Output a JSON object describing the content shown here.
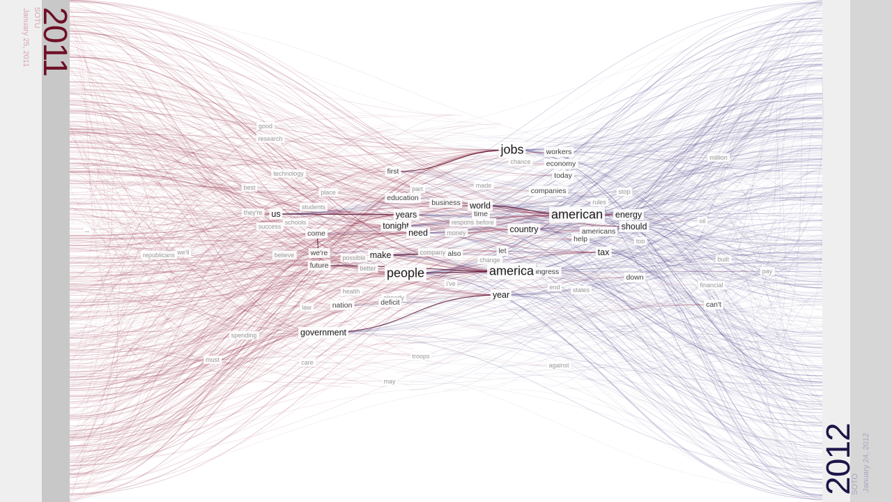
{
  "left": {
    "year": "2011",
    "label": "SOTU",
    "date": "January 25, 2011"
  },
  "right": {
    "year": "2012",
    "label": "SOTO",
    "date": "January 24, 2012"
  },
  "marker": "--",
  "colors": {
    "left": "#8b1a35",
    "right": "#3a2d78",
    "left_text": "#d8a5b0",
    "right_text": "#a9a6c2"
  },
  "words": [
    {
      "text": "jobs",
      "w": 3
    },
    {
      "text": "workers",
      "w": 1
    },
    {
      "text": "chance",
      "w": 0
    },
    {
      "text": "economy",
      "w": 1
    },
    {
      "text": "today",
      "w": 1
    },
    {
      "text": "million",
      "w": 0
    },
    {
      "text": "first",
      "w": 1
    },
    {
      "text": "technology",
      "w": 0
    },
    {
      "text": "good",
      "w": 0
    },
    {
      "text": "research",
      "w": 0
    },
    {
      "text": "best",
      "w": 0
    },
    {
      "text": "place",
      "w": 0
    },
    {
      "text": "made",
      "w": 0
    },
    {
      "text": "companies",
      "w": 1
    },
    {
      "text": "stop",
      "w": 0
    },
    {
      "text": "education",
      "w": 1
    },
    {
      "text": "part",
      "w": 0
    },
    {
      "text": "business",
      "w": 1
    },
    {
      "text": "world",
      "w": 2
    },
    {
      "text": "rules",
      "w": 0
    },
    {
      "text": "students",
      "w": 0
    },
    {
      "text": "they're",
      "w": 0
    },
    {
      "text": "us",
      "w": 2
    },
    {
      "text": "years",
      "w": 2
    },
    {
      "text": "time",
      "w": 1
    },
    {
      "text": "american",
      "w": 3
    },
    {
      "text": "energy",
      "w": 2
    },
    {
      "text": "oil",
      "w": 0
    },
    {
      "text": "schools",
      "w": 0
    },
    {
      "text": "success",
      "w": 0
    },
    {
      "text": "tonight",
      "w": 2
    },
    {
      "text": "responsibility",
      "w": 0
    },
    {
      "text": "before",
      "w": 0
    },
    {
      "text": "country",
      "w": 2
    },
    {
      "text": "americans",
      "w": 1
    },
    {
      "text": "should",
      "w": 2
    },
    {
      "text": "come",
      "w": 1
    },
    {
      "text": "need",
      "w": 2
    },
    {
      "text": "money",
      "w": 0
    },
    {
      "text": "help",
      "w": 1
    },
    {
      "text": "too",
      "w": 0
    },
    {
      "text": "we'll",
      "w": 0
    },
    {
      "text": "republicans",
      "w": 0
    },
    {
      "text": "believe",
      "w": 0
    },
    {
      "text": "we're",
      "w": 1
    },
    {
      "text": "make",
      "w": 2
    },
    {
      "text": "company",
      "w": 0
    },
    {
      "text": "also",
      "w": 1
    },
    {
      "text": "let",
      "w": 1
    },
    {
      "text": "tax",
      "w": 2
    },
    {
      "text": "possible",
      "w": 0
    },
    {
      "text": "change",
      "w": 0
    },
    {
      "text": "built",
      "w": 0
    },
    {
      "text": "future",
      "w": 1
    },
    {
      "text": "better",
      "w": 0
    },
    {
      "text": "people",
      "w": 3
    },
    {
      "text": "america",
      "w": 3
    },
    {
      "text": "congress",
      "w": 1
    },
    {
      "text": "pay",
      "w": 0
    },
    {
      "text": "down",
      "w": 1
    },
    {
      "text": "i've",
      "w": 0
    },
    {
      "text": "end",
      "w": 0
    },
    {
      "text": "states",
      "w": 0
    },
    {
      "text": "financial",
      "w": 0
    },
    {
      "text": "health",
      "w": 0
    },
    {
      "text": "year",
      "w": 2
    },
    {
      "text": "already",
      "w": 0
    },
    {
      "text": "deficit",
      "w": 1
    },
    {
      "text": "law",
      "w": 0
    },
    {
      "text": "nation",
      "w": 1
    },
    {
      "text": "can't",
      "w": 1
    },
    {
      "text": "government",
      "w": 2
    },
    {
      "text": "spending",
      "w": 0
    },
    {
      "text": "must",
      "w": 0
    },
    {
      "text": "care",
      "w": 0
    },
    {
      "text": "troops",
      "w": 0
    },
    {
      "text": "against",
      "w": 0
    },
    {
      "text": "may",
      "w": 0
    }
  ]
}
